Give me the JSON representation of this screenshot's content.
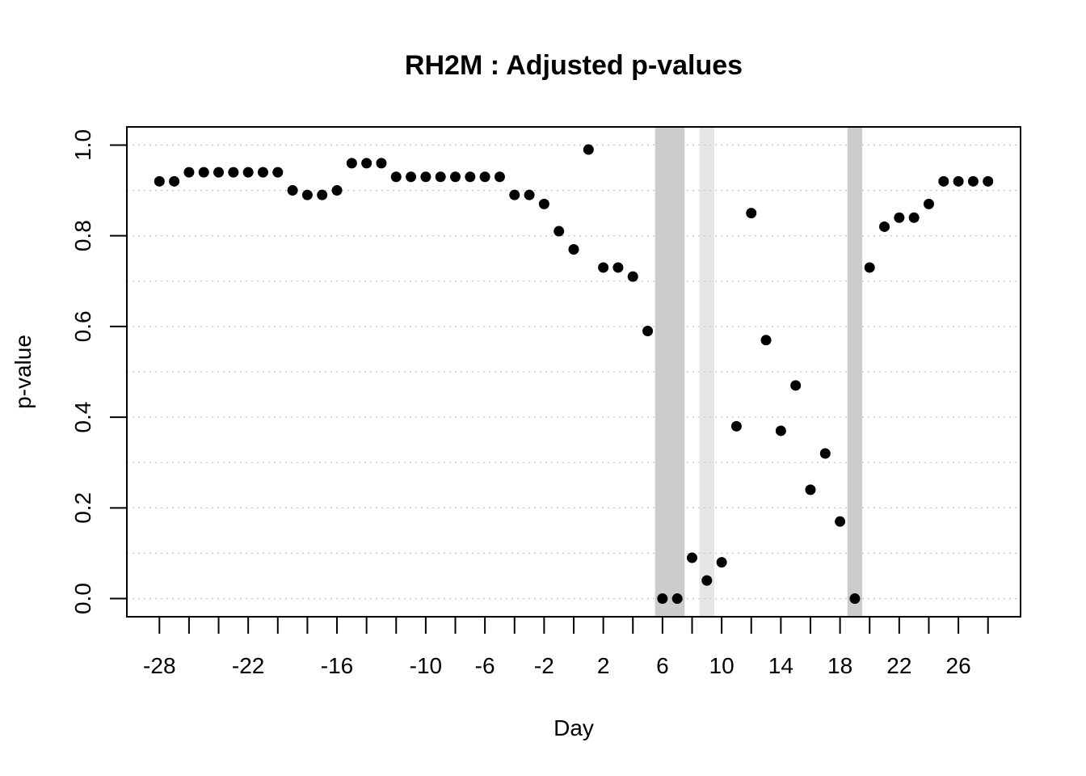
{
  "chart_data": {
    "type": "scatter",
    "title": "RH2M : Adjusted p-values",
    "xlabel": "Day",
    "ylabel": "p-value",
    "xlim": [
      -30.2,
      30.2
    ],
    "ylim": [
      -0.04,
      1.04
    ],
    "x_ticks": [
      -28,
      -26,
      -24,
      -22,
      -20,
      -18,
      -16,
      -14,
      -12,
      -10,
      -8,
      -6,
      -4,
      -2,
      0,
      2,
      4,
      6,
      8,
      10,
      12,
      14,
      16,
      18,
      20,
      22,
      24,
      26,
      28
    ],
    "x_tick_labels": [
      "-28",
      "",
      "",
      "-22",
      "",
      "",
      "-16",
      "",
      "",
      "-10",
      "",
      "-6",
      "",
      "-2",
      "",
      "2",
      "",
      "6",
      "",
      "10",
      "",
      "14",
      "",
      "18",
      "",
      "22",
      "",
      "26",
      ""
    ],
    "y_ticks": [
      0,
      0.2,
      0.4,
      0.6,
      0.8,
      1.0
    ],
    "y_tick_labels": [
      "0.0",
      "0.2",
      "0.4",
      "0.6",
      "0.8",
      "1.0"
    ],
    "y_minor_gridlines": [
      0.1,
      0.3,
      0.5,
      0.7,
      0.9
    ],
    "grid": true,
    "highlight_bands": [
      {
        "from": 5.5,
        "to": 7.5,
        "color": "#cccccc"
      },
      {
        "from": 8.5,
        "to": 9.5,
        "color": "#e5e5e5"
      },
      {
        "from": 18.5,
        "to": 19.5,
        "color": "#cccccc"
      }
    ],
    "point_color": "#000000",
    "x": [
      -28,
      -27,
      -26,
      -25,
      -24,
      -23,
      -22,
      -21,
      -20,
      -19,
      -18,
      -17,
      -16,
      -15,
      -14,
      -13,
      -12,
      -11,
      -10,
      -9,
      -8,
      -7,
      -6,
      -5,
      -4,
      -3,
      -2,
      -1,
      0,
      1,
      2,
      3,
      4,
      5,
      6,
      7,
      8,
      9,
      10,
      11,
      12,
      13,
      14,
      15,
      16,
      17,
      18,
      19,
      20,
      21,
      22,
      23,
      24,
      25,
      26,
      27,
      28
    ],
    "y": [
      0.92,
      0.92,
      0.94,
      0.94,
      0.94,
      0.94,
      0.94,
      0.94,
      0.94,
      0.9,
      0.89,
      0.89,
      0.9,
      0.96,
      0.96,
      0.96,
      0.93,
      0.93,
      0.93,
      0.93,
      0.93,
      0.93,
      0.93,
      0.93,
      0.89,
      0.89,
      0.87,
      0.81,
      0.77,
      0.99,
      0.73,
      0.73,
      0.71,
      0.59,
      0.0,
      0.0,
      0.09,
      0.04,
      0.08,
      0.38,
      0.85,
      0.57,
      0.37,
      0.47,
      0.24,
      0.32,
      0.17,
      0.0,
      0.73,
      0.82,
      0.84,
      0.84,
      0.87,
      0.92,
      0.92,
      0.92,
      0.92
    ]
  }
}
